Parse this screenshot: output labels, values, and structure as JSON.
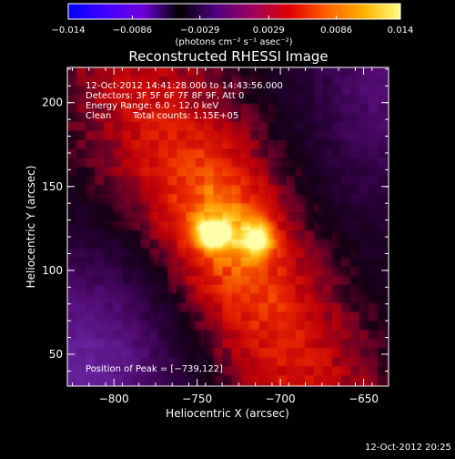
{
  "chart_data": {
    "type": "heatmap",
    "title": "Reconstructed RHESSI Image",
    "xlabel": "Heliocentric X (arcsec)",
    "ylabel": "Heliocentric Y (arcsec)",
    "xlim": [
      -828,
      -635
    ],
    "ylim": [
      31,
      221
    ],
    "xticks": [
      -800,
      -750,
      -700,
      -650
    ],
    "xtick_labels": [
      "−800",
      "−750",
      "−700",
      "−650"
    ],
    "yticks": [
      50,
      100,
      150,
      200
    ],
    "ytick_labels": [
      "50",
      "100",
      "150",
      "200"
    ],
    "colorbar": {
      "range": [
        -0.014,
        0.014
      ],
      "ticks": [
        -0.014,
        -0.0086,
        -0.0029,
        0.0029,
        0.0086,
        0.014
      ],
      "tick_labels": [
        "−0.014",
        "−0.0086",
        "−0.0029",
        "0.0029",
        "0.0086",
        "0.014"
      ],
      "units_label": "(photons cm⁻² s⁻¹ asec⁻²)",
      "colors": [
        "#0000ff",
        "#4000ff",
        "#7000e0",
        "#000000",
        "#500080",
        "#a00060",
        "#e00000",
        "#ff6000",
        "#ffb000",
        "#ffff80"
      ]
    },
    "annotations": [
      "12-Oct-2012 14:41:28.000 to 14:43:56.000",
      "Detectors: 3F 5F 6F 7F 8F 9F, Att 0",
      "Energy Range: 6.0 - 12.0 keV",
      "Clean",
      "Total counts: 1.15E+05"
    ],
    "peak_label": "Position of Peak = [−739,122]",
    "peak_position": [
      -739,
      122
    ],
    "sources": [
      {
        "x": -740,
        "y": 122,
        "peak_value": 0.014
      },
      {
        "x": -714,
        "y": 119,
        "peak_value": 0.0125
      }
    ]
  },
  "footer": {
    "timestamp": "12-Oct-2012 20:25"
  }
}
